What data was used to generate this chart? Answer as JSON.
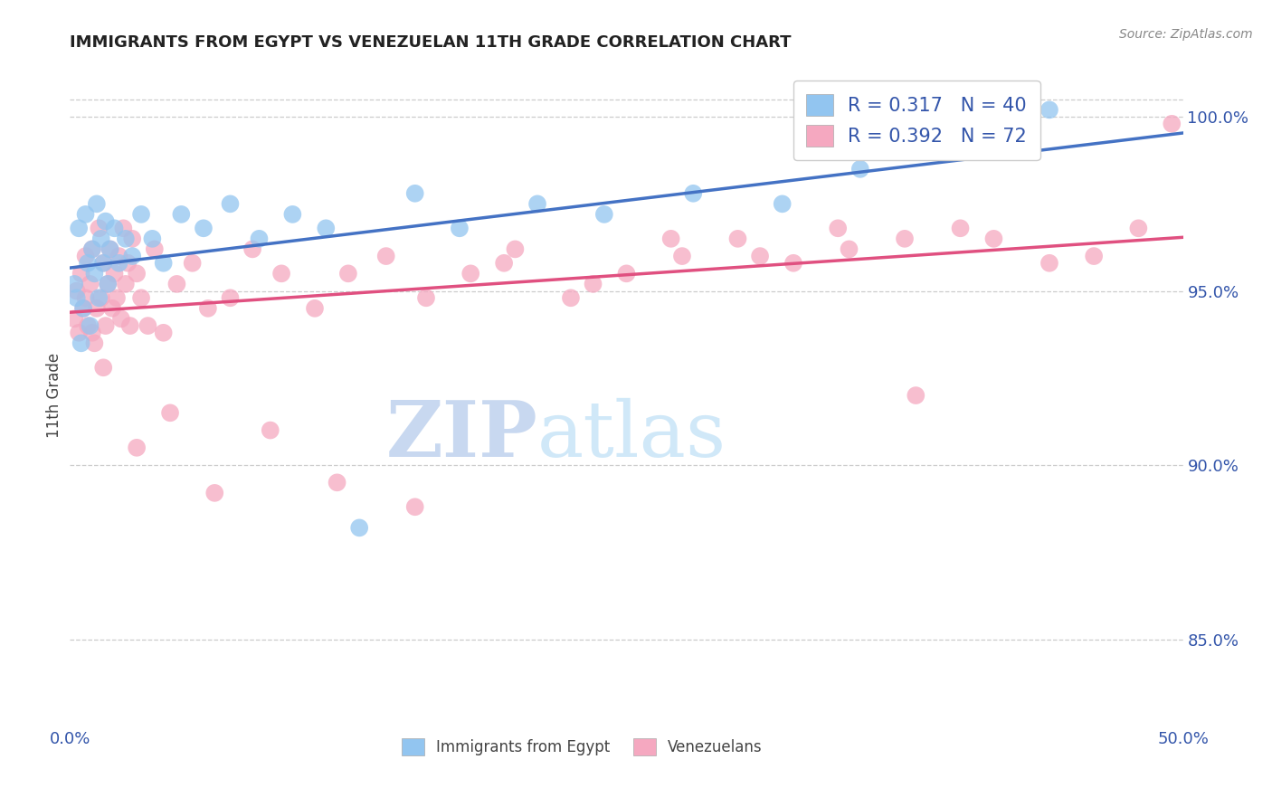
{
  "title": "IMMIGRANTS FROM EGYPT VS VENEZUELAN 11TH GRADE CORRELATION CHART",
  "source": "Source: ZipAtlas.com",
  "ylabel": "11th Grade",
  "xlim": [
    0.0,
    0.5
  ],
  "ylim": [
    0.825,
    1.015
  ],
  "xticks": [
    0.0,
    0.1,
    0.2,
    0.3,
    0.4,
    0.5
  ],
  "xticklabels": [
    "0.0%",
    "",
    "",
    "",
    "",
    "50.0%"
  ],
  "yticks": [
    0.85,
    0.9,
    0.95,
    1.0
  ],
  "yticklabels": [
    "85.0%",
    "90.0%",
    "95.0%",
    "100.0%"
  ],
  "egypt_R": 0.317,
  "egypt_N": 40,
  "venezuela_R": 0.392,
  "venezuela_N": 72,
  "egypt_color": "#92C5F0",
  "venezuela_color": "#F5A8C0",
  "egypt_line_color": "#4472C4",
  "venezuela_line_color": "#E05080",
  "background_color": "#FFFFFF",
  "grid_color": "#CCCCCC",
  "watermark_zip_color": "#C8D8F0",
  "watermark_atlas_color": "#D0E8F8",
  "title_color": "#222222",
  "axis_color": "#3355AA",
  "label_color": "#444444",
  "source_color": "#888888",
  "legend_text_color": "#3355AA",
  "egypt_x": [
    0.002,
    0.003,
    0.004,
    0.005,
    0.006,
    0.007,
    0.008,
    0.009,
    0.01,
    0.011,
    0.012,
    0.013,
    0.014,
    0.015,
    0.016,
    0.017,
    0.018,
    0.02,
    0.022,
    0.025,
    0.028,
    0.032,
    0.037,
    0.042,
    0.05,
    0.06,
    0.072,
    0.085,
    0.1,
    0.115,
    0.13,
    0.155,
    0.175,
    0.21,
    0.24,
    0.28,
    0.32,
    0.355,
    0.4,
    0.44
  ],
  "egypt_y": [
    0.952,
    0.948,
    0.968,
    0.935,
    0.945,
    0.972,
    0.958,
    0.94,
    0.962,
    0.955,
    0.975,
    0.948,
    0.965,
    0.958,
    0.97,
    0.952,
    0.962,
    0.968,
    0.958,
    0.965,
    0.96,
    0.972,
    0.965,
    0.958,
    0.972,
    0.968,
    0.975,
    0.965,
    0.972,
    0.968,
    0.882,
    0.978,
    0.968,
    0.975,
    0.972,
    0.978,
    0.975,
    0.985,
    0.995,
    1.002
  ],
  "venezuela_x": [
    0.002,
    0.003,
    0.004,
    0.005,
    0.006,
    0.007,
    0.007,
    0.008,
    0.009,
    0.01,
    0.011,
    0.012,
    0.013,
    0.014,
    0.015,
    0.016,
    0.017,
    0.018,
    0.019,
    0.02,
    0.021,
    0.022,
    0.023,
    0.024,
    0.025,
    0.026,
    0.027,
    0.028,
    0.03,
    0.032,
    0.035,
    0.038,
    0.042,
    0.048,
    0.055,
    0.062,
    0.072,
    0.082,
    0.095,
    0.11,
    0.125,
    0.142,
    0.16,
    0.18,
    0.2,
    0.225,
    0.25,
    0.275,
    0.3,
    0.325,
    0.35,
    0.375,
    0.4,
    0.03,
    0.045,
    0.065,
    0.09,
    0.12,
    0.155,
    0.195,
    0.235,
    0.27,
    0.31,
    0.345,
    0.38,
    0.415,
    0.44,
    0.46,
    0.48,
    0.495,
    0.01,
    0.015
  ],
  "venezuela_y": [
    0.942,
    0.95,
    0.938,
    0.955,
    0.945,
    0.948,
    0.96,
    0.94,
    0.952,
    0.962,
    0.935,
    0.945,
    0.968,
    0.948,
    0.958,
    0.94,
    0.952,
    0.962,
    0.945,
    0.955,
    0.948,
    0.96,
    0.942,
    0.968,
    0.952,
    0.958,
    0.94,
    0.965,
    0.955,
    0.948,
    0.94,
    0.962,
    0.938,
    0.952,
    0.958,
    0.945,
    0.948,
    0.962,
    0.955,
    0.945,
    0.955,
    0.96,
    0.948,
    0.955,
    0.962,
    0.948,
    0.955,
    0.96,
    0.965,
    0.958,
    0.962,
    0.965,
    0.968,
    0.905,
    0.915,
    0.892,
    0.91,
    0.895,
    0.888,
    0.958,
    0.952,
    0.965,
    0.96,
    0.968,
    0.92,
    0.965,
    0.958,
    0.96,
    0.968,
    0.998,
    0.938,
    0.928
  ]
}
